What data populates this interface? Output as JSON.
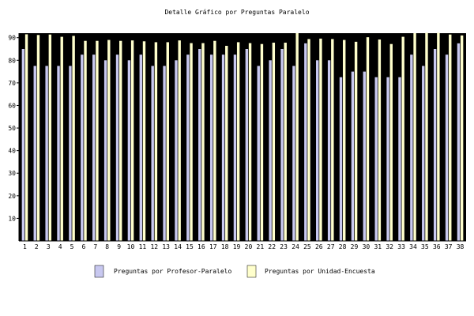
{
  "chart_data": {
    "type": "bar",
    "title": "Detalle Gráfico por Preguntas Paralelo",
    "xlabel": "",
    "ylabel": "",
    "ylim": [
      0,
      92
    ],
    "yticks": [
      10,
      20,
      30,
      40,
      50,
      60,
      70,
      80,
      90
    ],
    "grid": false,
    "legend_position": "bottom",
    "categories": [
      "1",
      "2",
      "3",
      "4",
      "5",
      "6",
      "7",
      "8",
      "9",
      "10",
      "11",
      "12",
      "13",
      "14",
      "15",
      "16",
      "17",
      "18",
      "19",
      "20",
      "21",
      "22",
      "23",
      "24",
      "25",
      "26",
      "27",
      "28",
      "29",
      "30",
      "31",
      "32",
      "33",
      "34",
      "35",
      "36",
      "37",
      "38"
    ],
    "series": [
      {
        "name": "Preguntas por Profesor-Paralelo",
        "color": "#c8c8f0",
        "values": [
          85,
          77.5,
          77.5,
          77.5,
          77.5,
          82.5,
          82.5,
          80,
          82.5,
          80,
          82.5,
          77.5,
          77.5,
          80,
          82.5,
          85,
          82.5,
          82.5,
          82.5,
          85,
          77.5,
          80,
          85,
          77.5,
          87.5,
          80,
          80,
          72.5,
          75,
          75,
          72.5,
          72.5,
          72.5,
          82.5,
          77.5,
          85,
          82.5,
          87.5
        ]
      },
      {
        "name": "Preguntas por Unidad-Encuesta",
        "color": "#ffffcc",
        "values": [
          91.5,
          91.2,
          91.4,
          90.4,
          90.8,
          88.6,
          88.6,
          89,
          88.6,
          88.8,
          88.4,
          88,
          88,
          88.8,
          87.6,
          87.6,
          88.6,
          86.4,
          88,
          87.6,
          87.2,
          87.8,
          87.8,
          92,
          89.4,
          89.6,
          89.4,
          89,
          88.2,
          90.2,
          89.2,
          87.2,
          90.4,
          92,
          92.2,
          92.2,
          91.4,
          91
        ]
      }
    ]
  }
}
